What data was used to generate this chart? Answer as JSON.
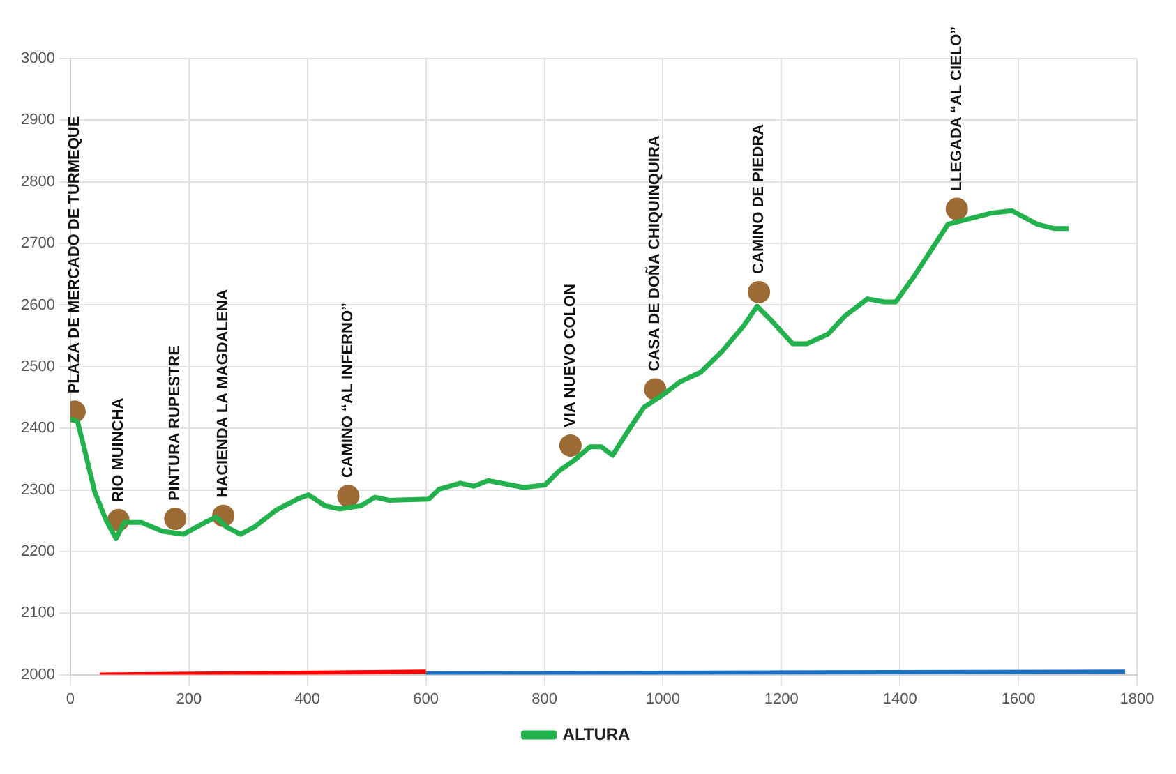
{
  "chart_data": {
    "type": "line",
    "xlim": [
      0,
      1800
    ],
    "xticks": [
      0,
      200,
      400,
      600,
      800,
      1000,
      1200,
      1400,
      1600,
      1800
    ],
    "ylim": [
      2000,
      3000
    ],
    "yticks": [
      2000,
      2100,
      2200,
      2300,
      2400,
      2500,
      2600,
      2700,
      2800,
      2900,
      3000
    ],
    "grid": true,
    "legend": "bottom",
    "marker": "none",
    "series": [
      {
        "name": "ALTURA",
        "color": "#22b14c",
        "x": [
          0,
          12,
          24,
          41,
          60,
          77,
          91,
          120,
          155,
          191,
          227,
          246,
          263,
          287,
          311,
          347,
          383,
          402,
          430,
          454,
          490,
          514,
          538,
          605,
          622,
          658,
          681,
          705,
          765,
          801,
          825,
          849,
          877,
          896,
          915,
          944,
          968,
          1004,
          1028,
          1064,
          1100,
          1136,
          1159,
          1183,
          1219,
          1243,
          1279,
          1307,
          1345,
          1374,
          1393,
          1422,
          1450,
          1481,
          1505,
          1553,
          1589,
          1632,
          1661,
          1685
        ],
        "values": [
          2415,
          2411,
          2365,
          2297,
          2251,
          2221,
          2247,
          2247,
          2233,
          2228,
          2247,
          2256,
          2240,
          2228,
          2240,
          2267,
          2285,
          2292,
          2274,
          2269,
          2274,
          2288,
          2283,
          2285,
          2301,
          2311,
          2306,
          2315,
          2304,
          2308,
          2331,
          2347,
          2370,
          2370,
          2356,
          2400,
          2434,
          2457,
          2475,
          2491,
          2525,
          2566,
          2598,
          2575,
          2537,
          2537,
          2553,
          2582,
          2610,
          2605,
          2605,
          2644,
          2685,
          2731,
          2737,
          2749,
          2753,
          2731,
          2724,
          2724
        ]
      },
      {
        "color": "#ff0000",
        "x": [
          50,
          600
        ],
        "values": [
          2000,
          2005
        ]
      },
      {
        "color": "#1f6fc0",
        "x": [
          600,
          1780
        ],
        "values": [
          2002,
          2005
        ]
      },
      {
        "type": "scatter",
        "color": "#9b6a35",
        "marker": "circle",
        "x": [
          7,
          81,
          177,
          258,
          469,
          844,
          987,
          1162,
          1496
        ],
        "values": [
          2427,
          2251,
          2253,
          2258,
          2290,
          2372,
          2463,
          2621,
          2756
        ]
      }
    ],
    "annotations": [
      {
        "text": "PLAZA DE MERCADO DE TURMEQUE",
        "x": 7,
        "y": 2427
      },
      {
        "text": "RIO MUINCHA",
        "x": 81,
        "y": 2251
      },
      {
        "text": "PINTURA RUPESTRE",
        "x": 177,
        "y": 2253
      },
      {
        "text": "HACIENDA LA MAGDALENA",
        "x": 258,
        "y": 2258
      },
      {
        "text": "CAMINO “AL INFERNO”",
        "x": 469,
        "y": 2290
      },
      {
        "text": "VIA NUEVO COLON",
        "x": 844,
        "y": 2372
      },
      {
        "text": "CASA DE DOÑA CHIQUINQUIRA",
        "x": 987,
        "y": 2463
      },
      {
        "text": "CAMINO DE PIEDRA",
        "x": 1162,
        "y": 2621
      },
      {
        "text": "LLEGADA “AL CIELO”",
        "x": 1496,
        "y": 2756
      }
    ]
  }
}
